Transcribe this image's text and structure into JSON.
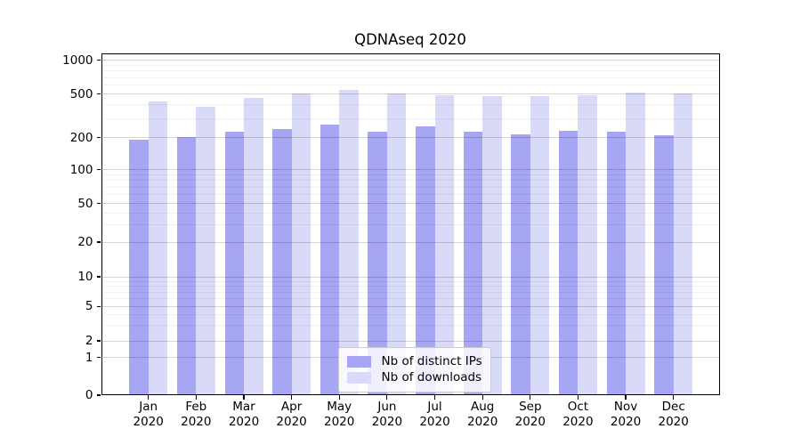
{
  "title": "QDNAseq 2020",
  "chart_data": {
    "type": "bar",
    "title": "QDNAseq 2020",
    "categories": [
      "Jan",
      "Feb",
      "Mar",
      "Apr",
      "May",
      "Jun",
      "Jul",
      "Aug",
      "Sep",
      "Oct",
      "Nov",
      "Dec"
    ],
    "category_sublabel": "2020",
    "series": [
      {
        "name": "Nb of distinct IPs",
        "color": "#a6a6f4",
        "values": [
          192,
          201,
          228,
          238,
          262,
          226,
          256,
          228,
          214,
          233,
          226,
          209
        ]
      },
      {
        "name": "Nb of downloads",
        "color": "#d9d9f8",
        "values": [
          428,
          381,
          459,
          503,
          550,
          505,
          484,
          478,
          483,
          487,
          520,
          510
        ]
      }
    ],
    "yaxis": {
      "ticks": [
        0,
        1,
        2,
        5,
        10,
        20,
        50,
        100,
        200,
        500,
        1000
      ],
      "scale": "log-like",
      "top_value": 1000
    },
    "xlabel": "",
    "ylabel": "",
    "grid": true,
    "legend_position": "lower center"
  },
  "colors": {
    "grid_major": "#d6d6d6",
    "grid_minor": "#efefef",
    "frame": "#000000",
    "text": "#000000",
    "legend_border": "#cccccc",
    "legend_bg": "#ffffff"
  }
}
